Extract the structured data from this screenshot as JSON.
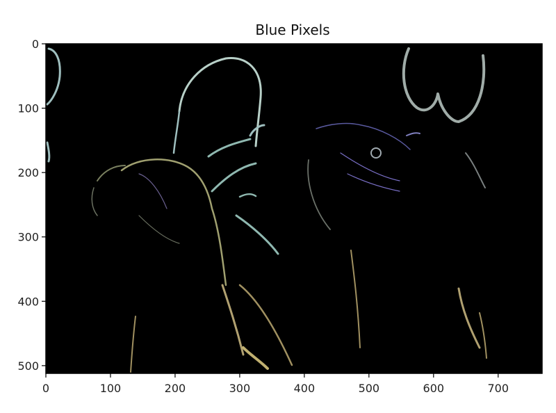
{
  "chart_data": {
    "type": "heatmap",
    "title": "Blue Pixels",
    "xlabel": "",
    "ylabel": "",
    "xlim": [
      0,
      768
    ],
    "ylim": [
      512,
      0
    ],
    "x_ticks": [
      0,
      100,
      200,
      300,
      400,
      500,
      600,
      700
    ],
    "y_ticks": [
      0,
      100,
      200,
      300,
      400,
      500
    ],
    "x_tick_labels": [
      "0",
      "100",
      "200",
      "300",
      "400",
      "500",
      "600",
      "700"
    ],
    "y_tick_labels": [
      "0",
      "100",
      "200",
      "300",
      "400",
      "500"
    ],
    "grid": false,
    "image_content": "edge-detected image of two parrots on a black background",
    "background_color": "#000000",
    "edge_colors": [
      "#9fbfbf",
      "#c8d8c8",
      "#7a70c8",
      "#a09060",
      "#c0b070"
    ]
  }
}
